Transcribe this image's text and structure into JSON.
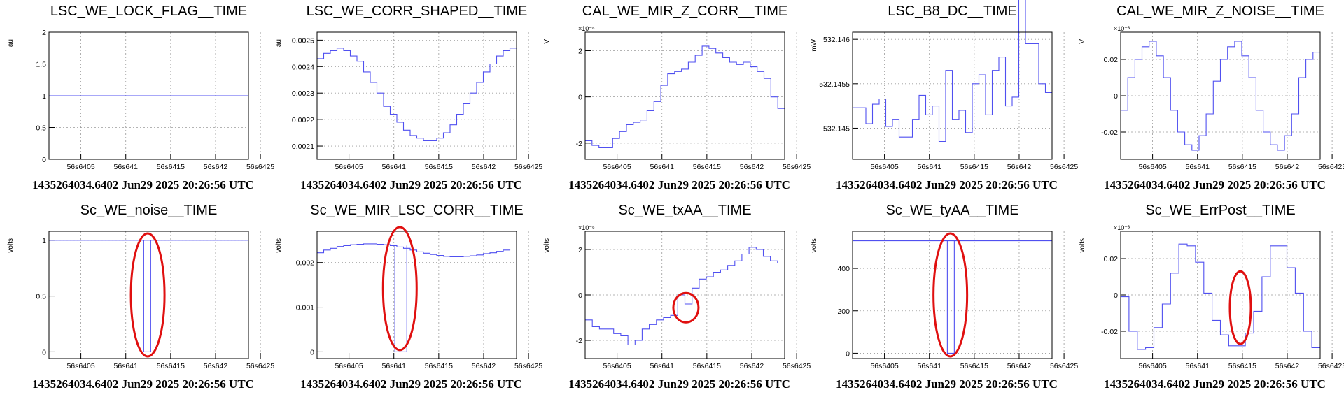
{
  "footer_text": "1435264034.6402 Jun29 2025 20:26:56 UTC",
  "colors": {
    "trace": "#5050f0",
    "annotation": "#e01010",
    "grid": "#9a9a9a"
  },
  "chart_data": [
    {
      "type": "line",
      "title": "LSC_WE_LOCK_FLAG__TIME",
      "ylabel": "au",
      "exponent": "",
      "x_tick_labels": [
        "56s6405",
        "56s641",
        "56s6415",
        "56s642",
        "56s6425"
      ],
      "y_ticks": [
        0,
        0.5,
        1,
        1.5,
        2
      ],
      "y_tick_labels": [
        "0",
        "0.5",
        "1",
        "1.5",
        "2"
      ],
      "ylim": [
        0,
        2
      ],
      "series": [
        {
          "values": [
            1,
            1,
            1,
            1,
            1,
            1,
            1,
            1,
            1,
            1,
            1,
            1,
            1,
            1,
            1,
            1,
            1,
            1,
            1,
            1,
            1,
            1,
            1,
            1,
            1,
            1,
            1,
            1,
            1,
            1,
            1,
            1
          ]
        }
      ],
      "grid": true
    },
    {
      "type": "line",
      "title": "LSC_WE_CORR_SHAPED__TIME",
      "ylabel": "au",
      "exponent": "",
      "x_tick_labels": [
        "56s6405",
        "56s641",
        "56s6415",
        "56s642",
        "56s6425"
      ],
      "y_ticks": [
        0.0021,
        0.0022,
        0.0023,
        0.0024,
        0.0025
      ],
      "y_tick_labels": [
        "0.0021",
        "0.0022",
        "0.0023",
        "0.0024",
        "0.0025"
      ],
      "ylim": [
        0.00205,
        0.00253
      ],
      "series": [
        {
          "values": [
            0.00243,
            0.00245,
            0.00246,
            0.00247,
            0.00246,
            0.00244,
            0.00242,
            0.00238,
            0.00234,
            0.0023,
            0.00225,
            0.00222,
            0.00219,
            0.00216,
            0.00214,
            0.00213,
            0.00212,
            0.00212,
            0.00213,
            0.00215,
            0.00218,
            0.00222,
            0.00226,
            0.0023,
            0.00234,
            0.00238,
            0.00241,
            0.00244,
            0.00246,
            0.00247
          ]
        }
      ],
      "grid": true
    },
    {
      "type": "line",
      "title": "CAL_WE_MIR_Z_CORR__TIME",
      "ylabel": "V",
      "exponent": "×10⁻⁶",
      "x_tick_labels": [
        "56s6405",
        "56s641",
        "56s6415",
        "56s642",
        "56s6425"
      ],
      "y_ticks": [
        -2,
        0,
        2
      ],
      "y_tick_labels": [
        "-2",
        "0",
        "2"
      ],
      "ylim": [
        -2.7,
        2.8
      ],
      "series": [
        {
          "values": [
            -1.9,
            -2.1,
            -2.2,
            -2.2,
            -1.8,
            -1.5,
            -1.2,
            -1.1,
            -1.0,
            -0.6,
            -0.2,
            0.5,
            1.0,
            1.1,
            1.2,
            1.5,
            1.8,
            2.2,
            2.1,
            1.9,
            1.7,
            1.5,
            1.4,
            1.5,
            1.3,
            1.1,
            0.8,
            0.0,
            -0.5
          ]
        }
      ],
      "grid": true
    },
    {
      "type": "line",
      "title": "LSC_B8_DC__TIME",
      "ylabel": "mW",
      "exponent": "",
      "x_tick_labels": [
        "56s6405",
        "56s641",
        "56s6415",
        "56s642",
        "56s6425"
      ],
      "y_ticks": [
        532.145,
        532.1455,
        532.146
      ],
      "y_tick_labels": [
        "532.145",
        "532.1455",
        "532.146"
      ],
      "ylim": [
        532.14465,
        532.14608
      ],
      "series": [
        {
          "values": [
            532.14523,
            532.14523,
            532.14505,
            532.14527,
            532.14533,
            532.14502,
            532.1451,
            532.1449,
            532.1449,
            532.1451,
            532.14537,
            532.14515,
            532.14525,
            532.14485,
            532.14565,
            532.1451,
            532.1452,
            532.14495,
            532.1455,
            532.1456,
            532.14515,
            532.14565,
            532.1458,
            532.14525,
            532.14535,
            532.14645,
            532.14595,
            532.14595,
            532.1455,
            532.1454
          ]
        }
      ],
      "grid": true
    },
    {
      "type": "line",
      "title": "CAL_WE_MIR_Z_NOISE__TIME",
      "ylabel": "V",
      "exponent": "×10⁻³",
      "x_tick_labels": [
        "56s6405",
        "56s641",
        "56s6415",
        "56s642",
        "56s6425"
      ],
      "y_ticks": [
        -0.02,
        0,
        0.02
      ],
      "y_tick_labels": [
        "-0.02",
        "0",
        "0.02"
      ],
      "ylim": [
        -0.035,
        0.035
      ],
      "series": [
        {
          "values": [
            -0.008,
            0.01,
            0.02,
            0.027,
            0.03,
            0.022,
            0.01,
            -0.008,
            -0.02,
            -0.027,
            -0.03,
            -0.022,
            -0.01,
            0.008,
            0.02,
            0.027,
            0.03,
            0.022,
            0.01,
            -0.008,
            -0.02,
            -0.027,
            -0.03,
            -0.022,
            -0.01,
            0.01,
            0.02,
            0.024
          ]
        }
      ],
      "grid": true
    },
    {
      "type": "line",
      "title": "Sc_WE_noise__TIME",
      "ylabel": "volts",
      "exponent": "",
      "x_tick_labels": [
        "56s6405",
        "56s641",
        "56s6415",
        "56s642",
        "56s6425"
      ],
      "y_ticks": [
        0,
        0.5,
        1
      ],
      "y_tick_labels": [
        "0",
        "0.5",
        "1"
      ],
      "ylim": [
        -0.06,
        1.08
      ],
      "series": [
        {
          "values": [
            1,
            1,
            1,
            1,
            1,
            1,
            1,
            1,
            1,
            1,
            1,
            1,
            1,
            1,
            1,
            1,
            1,
            1,
            1,
            1,
            1,
            1,
            1,
            1,
            1,
            1,
            1,
            1,
            1,
            1,
            1,
            1
          ],
          "dropout": {
            "x0": 0.475,
            "x1": 0.51,
            "to": 0
          }
        }
      ],
      "highlight": {
        "cx": 0.495,
        "cy": 0.5
      },
      "grid": true
    },
    {
      "type": "line",
      "title": "Sc_WE_MIR_LSC_CORR__TIME",
      "ylabel": "volts",
      "exponent": "",
      "x_tick_labels": [
        "56s6405",
        "56s641",
        "56s6415",
        "56s642",
        "56s6425"
      ],
      "y_ticks": [
        0,
        0.001,
        0.002
      ],
      "y_tick_labels": [
        "0",
        "0.001",
        "0.002"
      ],
      "ylim": [
        -0.00015,
        0.0027
      ],
      "series": [
        {
          "values": [
            0.00222,
            0.00228,
            0.00232,
            0.00236,
            0.00238,
            0.0024,
            0.00241,
            0.00242,
            0.00242,
            0.00241,
            0.0024,
            0.00238,
            0.00235,
            0.00232,
            0.00228,
            0.00224,
            0.00221,
            0.00218,
            0.00216,
            0.00214,
            0.00213,
            0.00213,
            0.00214,
            0.00215,
            0.00217,
            0.0022,
            0.00222,
            0.00225,
            0.00228,
            0.0023
          ],
          "dropout": {
            "x0": 0.39,
            "x1": 0.45,
            "to": 0
          }
        }
      ],
      "highlight": {
        "cx": 0.415,
        "cy": 0.45
      },
      "grid": true
    },
    {
      "type": "line",
      "title": "Sc_WE_txAA__TIME",
      "ylabel": "volts",
      "exponent": "×10⁻⁶",
      "x_tick_labels": [
        "56s6405",
        "56s641",
        "56s6415",
        "56s642",
        "56s6425"
      ],
      "y_ticks": [
        -2,
        0,
        2
      ],
      "y_tick_labels": [
        "-2",
        "0",
        "2"
      ],
      "ylim": [
        -2.8,
        2.8
      ],
      "series": [
        {
          "values": [
            -1.1,
            -1.4,
            -1.5,
            -1.5,
            -1.7,
            -1.8,
            -2.2,
            -2.0,
            -1.5,
            -1.3,
            -1.1,
            -1.0,
            -0.9,
            0.0,
            -0.4,
            0.3,
            0.7,
            0.8,
            1.0,
            1.1,
            1.3,
            1.5,
            1.8,
            2.1,
            2.0,
            1.7,
            1.5,
            1.4
          ]
        }
      ],
      "highlight": {
        "cx": 0.505,
        "cy": 0.6
      },
      "grid": true
    },
    {
      "type": "line",
      "title": "Sc_WE_tyAA__TIME",
      "ylabel": "volts",
      "exponent": "",
      "x_tick_labels": [
        "56s6405",
        "56s641",
        "56s6415",
        "56s642",
        "56s6425"
      ],
      "y_ticks": [
        0,
        200,
        400
      ],
      "y_tick_labels": [
        "0",
        "200",
        "400"
      ],
      "ylim": [
        -25,
        575
      ],
      "series": [
        {
          "values": [
            530,
            530,
            530,
            530,
            530,
            530,
            530,
            530,
            530,
            530,
            530,
            530,
            530,
            530,
            530,
            530,
            530,
            530,
            530,
            530,
            530,
            530,
            530,
            530,
            530,
            530,
            530,
            530,
            530,
            530
          ],
          "dropout": {
            "x0": 0.475,
            "x1": 0.51,
            "to": 0
          }
        }
      ],
      "highlight": {
        "cx": 0.49,
        "cy": 0.5
      },
      "grid": true
    },
    {
      "type": "line",
      "title": "Sc_WE_ErrPost__TIME",
      "ylabel": "volts",
      "exponent": "×10⁻³",
      "x_tick_labels": [
        "56s6405",
        "56s641",
        "56s6415",
        "56s642",
        "56s6425"
      ],
      "y_ticks": [
        -0.02,
        0,
        0.02
      ],
      "y_tick_labels": [
        "-0.02",
        "0",
        "0.02"
      ],
      "ylim": [
        -0.035,
        0.035
      ],
      "series": [
        {
          "values": [
            -0.001,
            -0.02,
            -0.03,
            -0.029,
            -0.018,
            -0.005,
            0.012,
            0.028,
            0.027,
            0.018,
            0.001,
            -0.014,
            -0.022,
            -0.028,
            -0.028,
            -0.021,
            -0.009,
            0.01,
            0.027,
            0.027,
            0.015,
            0.001,
            -0.02,
            -0.029
          ]
        }
      ],
      "highlight": {
        "cx": 0.6,
        "cy": 0.6
      },
      "grid": true
    }
  ]
}
